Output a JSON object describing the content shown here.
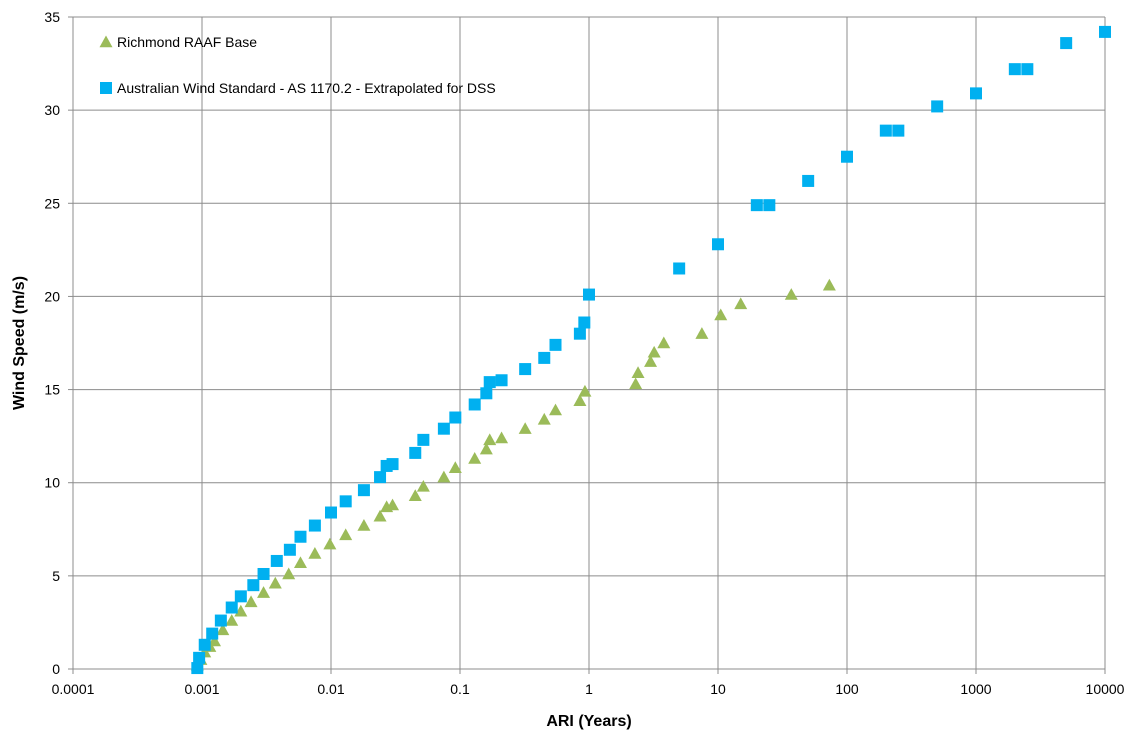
{
  "chart_data": {
    "type": "scatter",
    "xlabel": "ARI (Years)",
    "ylabel": "Wind Speed (m/s)",
    "xscale": "log",
    "xlim": [
      0.0001,
      10000
    ],
    "ylim": [
      0,
      35
    ],
    "x_ticks": [
      "0.0001",
      "0.001",
      "0.01",
      "0.1",
      "1",
      "10",
      "100",
      "1000",
      "10000"
    ],
    "y_ticks": [
      "0",
      "5",
      "10",
      "15",
      "20",
      "25",
      "30",
      "35"
    ],
    "grid": true,
    "legend": "top-left",
    "series": [
      {
        "name": "Richmond RAAF Base",
        "marker": "triangle",
        "color": "#9BBB59",
        "points": [
          [
            0.00092,
            0.2
          ],
          [
            0.00098,
            0.5
          ],
          [
            0.00105,
            0.9
          ],
          [
            0.00115,
            1.2
          ],
          [
            0.00125,
            1.5
          ],
          [
            0.00145,
            2.1
          ],
          [
            0.0017,
            2.6
          ],
          [
            0.002,
            3.1
          ],
          [
            0.0024,
            3.6
          ],
          [
            0.003,
            4.1
          ],
          [
            0.0037,
            4.6
          ],
          [
            0.0047,
            5.1
          ],
          [
            0.0058,
            5.7
          ],
          [
            0.0075,
            6.2
          ],
          [
            0.0098,
            6.7
          ],
          [
            0.013,
            7.2
          ],
          [
            0.018,
            7.7
          ],
          [
            0.024,
            8.2
          ],
          [
            0.027,
            8.7
          ],
          [
            0.03,
            8.8
          ],
          [
            0.045,
            9.3
          ],
          [
            0.052,
            9.8
          ],
          [
            0.075,
            10.3
          ],
          [
            0.092,
            10.8
          ],
          [
            0.13,
            11.3
          ],
          [
            0.16,
            11.8
          ],
          [
            0.17,
            12.3
          ],
          [
            0.21,
            12.4
          ],
          [
            0.32,
            12.9
          ],
          [
            0.45,
            13.4
          ],
          [
            0.55,
            13.9
          ],
          [
            0.85,
            14.4
          ],
          [
            0.93,
            14.9
          ],
          [
            2.3,
            15.3
          ],
          [
            2.4,
            15.9
          ],
          [
            3.0,
            16.5
          ],
          [
            3.2,
            17.0
          ],
          [
            3.8,
            17.5
          ],
          [
            7.5,
            18.0
          ],
          [
            10.5,
            19.0
          ],
          [
            15,
            19.6
          ],
          [
            37,
            20.1
          ],
          [
            73,
            20.6
          ]
        ]
      },
      {
        "name": "Australian Wind Standard - AS 1170.2 - Extrapolated for DSS",
        "marker": "square",
        "color": "#00B0F0",
        "points": [
          [
            0.00092,
            0.05
          ],
          [
            0.00095,
            0.6
          ],
          [
            0.00105,
            1.3
          ],
          [
            0.0012,
            1.9
          ],
          [
            0.0014,
            2.6
          ],
          [
            0.0017,
            3.3
          ],
          [
            0.002,
            3.9
          ],
          [
            0.0025,
            4.5
          ],
          [
            0.003,
            5.1
          ],
          [
            0.0038,
            5.8
          ],
          [
            0.0048,
            6.4
          ],
          [
            0.0058,
            7.1
          ],
          [
            0.0075,
            7.7
          ],
          [
            0.01,
            8.4
          ],
          [
            0.013,
            9.0
          ],
          [
            0.018,
            9.6
          ],
          [
            0.024,
            10.3
          ],
          [
            0.027,
            10.9
          ],
          [
            0.03,
            11.0
          ],
          [
            0.045,
            11.6
          ],
          [
            0.052,
            12.3
          ],
          [
            0.075,
            12.9
          ],
          [
            0.092,
            13.5
          ],
          [
            0.13,
            14.2
          ],
          [
            0.16,
            14.8
          ],
          [
            0.17,
            15.4
          ],
          [
            0.21,
            15.5
          ],
          [
            0.32,
            16.1
          ],
          [
            0.45,
            16.7
          ],
          [
            0.55,
            17.4
          ],
          [
            0.85,
            18.0
          ],
          [
            0.92,
            18.6
          ],
          [
            1.0,
            20.1
          ],
          [
            5,
            21.5
          ],
          [
            10,
            22.8
          ],
          [
            20,
            24.9
          ],
          [
            25,
            24.9
          ],
          [
            50,
            26.2
          ],
          [
            100,
            27.5
          ],
          [
            200,
            28.9
          ],
          [
            250,
            28.9
          ],
          [
            500,
            30.2
          ],
          [
            1000,
            30.9
          ],
          [
            2000,
            32.2
          ],
          [
            2500,
            32.2
          ],
          [
            5000,
            33.6
          ],
          [
            10000,
            34.2
          ]
        ]
      }
    ]
  }
}
